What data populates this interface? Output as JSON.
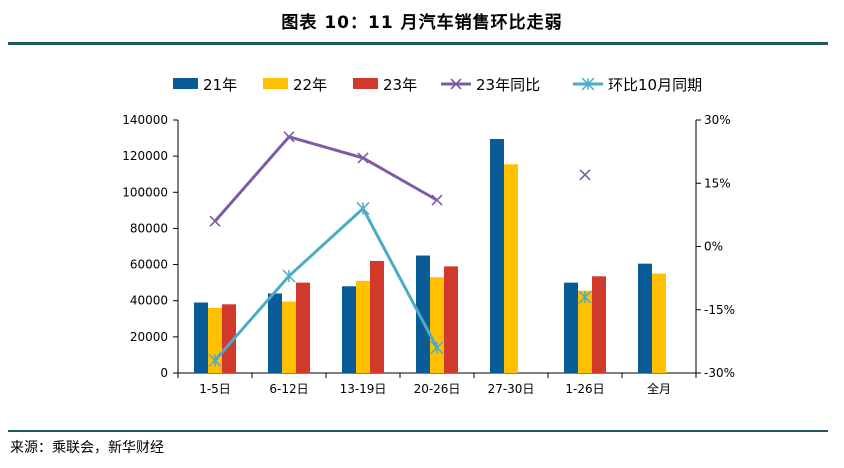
{
  "header": {
    "title": "图表 10：11 月汽车销售环比走弱"
  },
  "footer": {
    "source": "来源：乘联会，新华财经"
  },
  "chart_data": {
    "type": "bar",
    "categories": [
      "1-5日",
      "6-12日",
      "13-19日",
      "20-26日",
      "27-30日",
      "1-26日",
      "全月"
    ],
    "series": [
      {
        "name": "21年",
        "type": "bar",
        "axis": "left",
        "color": "#0a5c96",
        "values": [
          39000,
          44000,
          48000,
          65000,
          129500,
          50000,
          60500
        ]
      },
      {
        "name": "22年",
        "type": "bar",
        "axis": "left",
        "color": "#ffc000",
        "values": [
          36000,
          39500,
          51000,
          53000,
          115500,
          45500,
          55000
        ]
      },
      {
        "name": "23年",
        "type": "bar",
        "axis": "left",
        "color": "#d13a2a",
        "values": [
          38000,
          50000,
          62000,
          59000,
          null,
          53500,
          null
        ]
      },
      {
        "name": "23年同比",
        "type": "line",
        "axis": "right",
        "color": "#7f5ba6",
        "marker": "x",
        "values": [
          6,
          26,
          21,
          11,
          null,
          17,
          null
        ]
      },
      {
        "name": "环比10月同期",
        "type": "line",
        "axis": "right",
        "color": "#4bacc6",
        "marker": "asterisk",
        "values": [
          -27,
          -7,
          9,
          -24,
          null,
          -12,
          null
        ]
      }
    ],
    "y_left": {
      "min": 0,
      "max": 140000,
      "ticks": [
        0,
        20000,
        40000,
        60000,
        80000,
        100000,
        120000,
        140000
      ]
    },
    "y_right": {
      "min": -30,
      "max": 30,
      "ticks": [
        "-30%",
        "-15%",
        "0%",
        "15%",
        "30%"
      ]
    },
    "legend": "top",
    "grid": false
  }
}
